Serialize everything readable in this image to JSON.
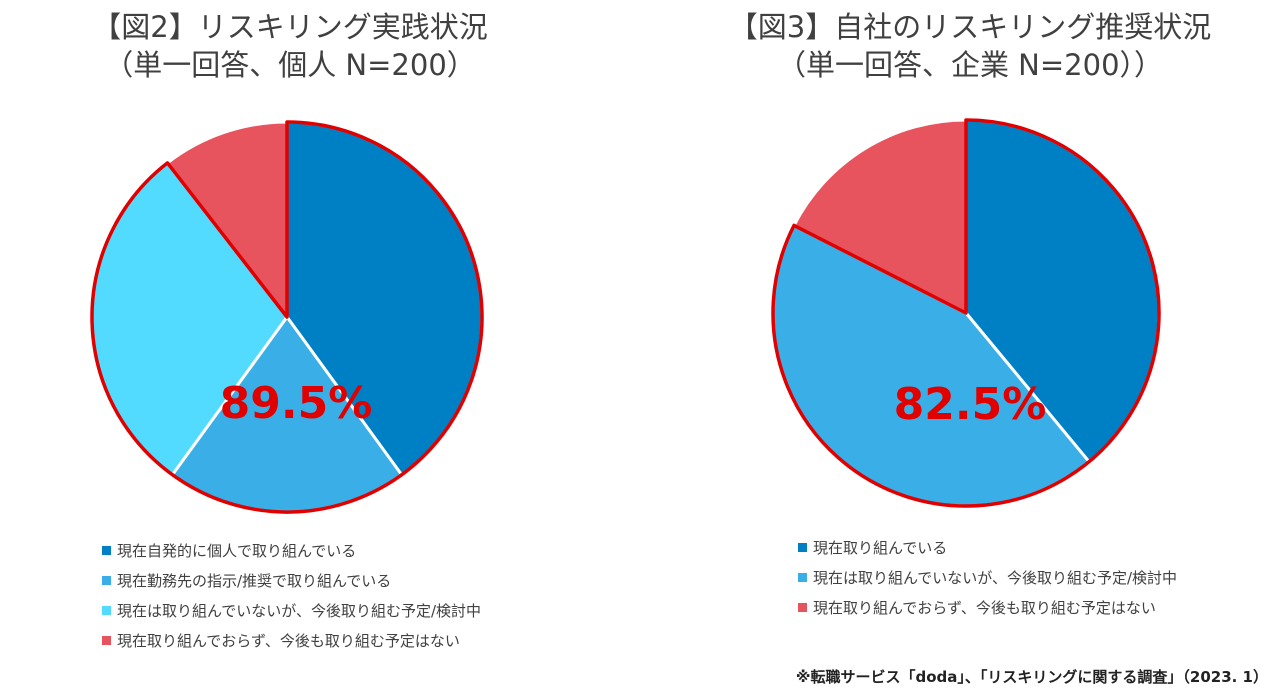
{
  "colors": {
    "seg_dark_blue": "#0080C4",
    "seg_mid_blue": "#3AAEE6",
    "seg_light_blue": "#52DBFF",
    "seg_red": "#E8545E",
    "highlight_outline": "#E00000",
    "highlight_text": "#E00000"
  },
  "chart_data": [
    {
      "type": "pie",
      "title": [
        "【図2】リスキリング実践状況",
        "（単一回答、個人 N=200）"
      ],
      "categories": [
        "現在自発的に個人で取り組んでいる",
        "現在勤務先の指示/推奨で取り組んでいる",
        "現在は取り組んでいないが、今後取り組む予定/検討中",
        "現在取り組んでおらず、今後も取り組む予定はない"
      ],
      "values": [
        40,
        20,
        29.5,
        10.5
      ],
      "highlight_label": "89.5%",
      "legend_position": "bottom"
    },
    {
      "type": "pie",
      "title": [
        "【図3】自社のリスキリング推奨状況",
        "（単一回答、企業 N=200））"
      ],
      "categories": [
        "現在取り組んでいる",
        "現在は取り組んでいないが、今後取り組む予定/検討中",
        "現在取り組んでおらず、今後も取り組む予定はない"
      ],
      "values": [
        39,
        43.5,
        17.5
      ],
      "highlight_label": "82.5%",
      "legend_position": "bottom"
    }
  ],
  "footer": {
    "source": "※転職サービス「doda」、「リスキリングに関する調査」（2023. 1）"
  }
}
